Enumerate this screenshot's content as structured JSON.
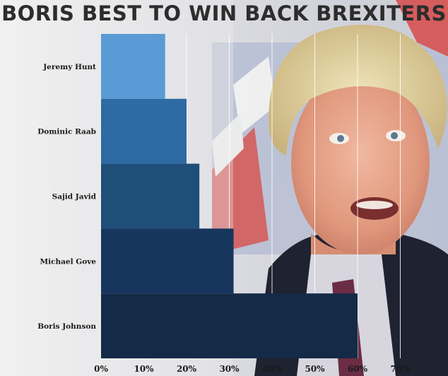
{
  "chart_data": {
    "type": "bar",
    "orientation": "horizontal",
    "title": "BORIS BEST TO WIN BACK BREXITERS",
    "categories": [
      "Jeremy Hunt",
      "Dominic Raab",
      "Sajid Javid",
      "Michael Gove",
      "Boris Johnson"
    ],
    "values": [
      15,
      20,
      23,
      31,
      60
    ],
    "colors": [
      "#5b9bd5",
      "#2e6aa3",
      "#1f4e79",
      "#17365d",
      "#142a47"
    ],
    "xlim": [
      0,
      70
    ],
    "xticks": [
      "0%",
      "10%",
      "20%",
      "30%",
      "40%",
      "50%",
      "60%",
      "70%"
    ],
    "grid": true,
    "xlabel": "",
    "ylabel": ""
  },
  "background": {
    "photo": "boris-johnson-portrait",
    "flag": "union-jack"
  }
}
